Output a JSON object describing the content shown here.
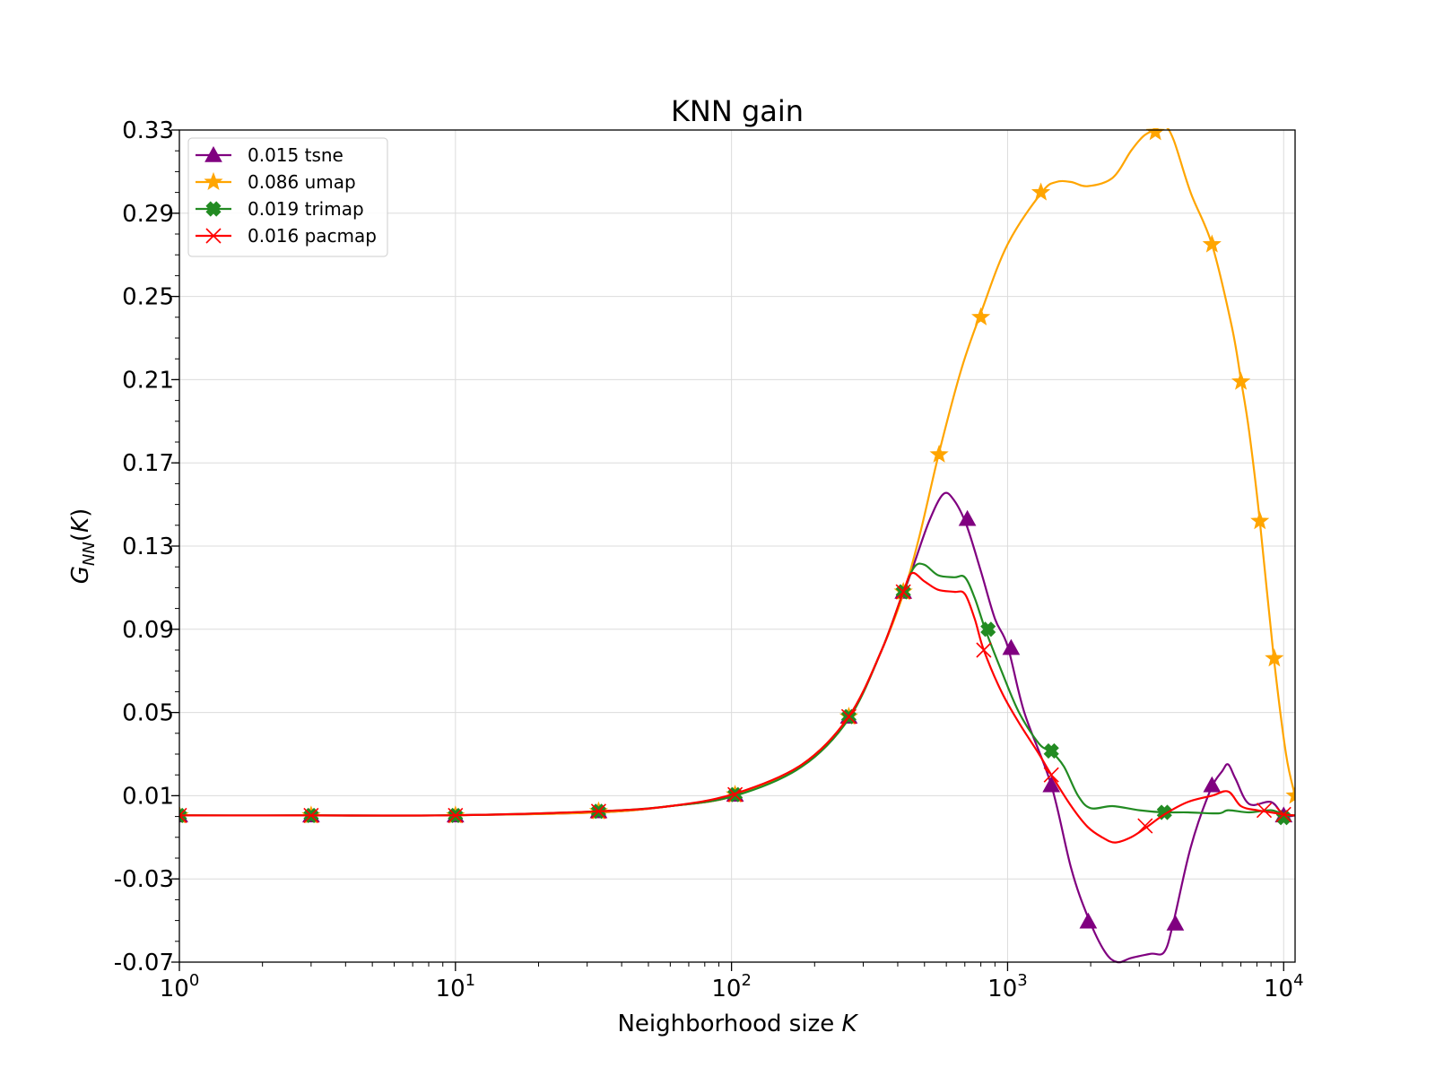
{
  "chart_data": {
    "type": "line",
    "title": "KNN gain",
    "xlabel": "Neighborhood size K",
    "ylabel": "G_NN(K)",
    "xscale": "log",
    "xlim": [
      1,
      11000
    ],
    "ylim": [
      -0.07,
      0.33
    ],
    "yticks": [
      "0.33",
      "0.29",
      "0.25",
      "0.21",
      "0.17",
      "0.13",
      "0.09",
      "0.05",
      "0.01",
      "-0.03",
      "-0.07"
    ],
    "xticks": [
      {
        "base": "10",
        "exp": "0",
        "value": 1
      },
      {
        "base": "10",
        "exp": "1",
        "value": 10
      },
      {
        "base": "10",
        "exp": "2",
        "value": 100
      },
      {
        "base": "10",
        "exp": "3",
        "value": 1000
      },
      {
        "base": "10",
        "exp": "4",
        "value": 10000
      }
    ],
    "grid": true,
    "legend_position": "upper-left",
    "series": [
      {
        "name": "0.015 tsne",
        "color": "#800080",
        "marker": "triangle",
        "curve": [
          [
            1,
            0.0005
          ],
          [
            3,
            0.0005
          ],
          [
            10,
            0.0006
          ],
          [
            33,
            0.002
          ],
          [
            60,
            0.005
          ],
          [
            103,
            0.01
          ],
          [
            180,
            0.025
          ],
          [
            266,
            0.048
          ],
          [
            350,
            0.08
          ],
          [
            419,
            0.107
          ],
          [
            460,
            0.122
          ],
          [
            520,
            0.142
          ],
          [
            585,
            0.155
          ],
          [
            640,
            0.152
          ],
          [
            710,
            0.14
          ],
          [
            800,
            0.118
          ],
          [
            900,
            0.095
          ],
          [
            1000,
            0.082
          ],
          [
            1150,
            0.05
          ],
          [
            1440,
            0.015
          ],
          [
            1700,
            -0.025
          ],
          [
            1950,
            -0.048
          ],
          [
            2250,
            -0.065
          ],
          [
            2500,
            -0.07
          ],
          [
            2800,
            -0.068
          ],
          [
            3300,
            -0.066
          ],
          [
            3700,
            -0.065
          ],
          [
            4000,
            -0.05
          ],
          [
            4600,
            -0.015
          ],
          [
            5400,
            0.012
          ],
          [
            6000,
            0.022
          ],
          [
            6300,
            0.025
          ],
          [
            6700,
            0.018
          ],
          [
            7500,
            0.006
          ],
          [
            9000,
            0.007
          ],
          [
            10000,
            0.0005
          ],
          [
            11000,
            0.0005
          ]
        ],
        "markers": [
          [
            1,
            0.0005
          ],
          [
            3,
            0.0005
          ],
          [
            10,
            0.0005
          ],
          [
            33,
            0.0025
          ],
          [
            103,
            0.0105
          ],
          [
            266,
            0.048
          ],
          [
            419,
            0.108
          ],
          [
            715,
            0.143
          ],
          [
            1030,
            0.081
          ],
          [
            1440,
            0.015
          ],
          [
            1960,
            -0.0505
          ],
          [
            4050,
            -0.0515
          ],
          [
            5500,
            0.015
          ],
          [
            10000,
            0.0005
          ]
        ]
      },
      {
        "name": "0.086 umap",
        "color": "#ffa500",
        "marker": "star",
        "curve": [
          [
            1,
            0.0005
          ],
          [
            3,
            0.0005
          ],
          [
            10,
            0.0006
          ],
          [
            33,
            0.002
          ],
          [
            60,
            0.005
          ],
          [
            103,
            0.01
          ],
          [
            180,
            0.025
          ],
          [
            266,
            0.048
          ],
          [
            350,
            0.08
          ],
          [
            419,
            0.107
          ],
          [
            480,
            0.135
          ],
          [
            565,
            0.175
          ],
          [
            680,
            0.215
          ],
          [
            800,
            0.242
          ],
          [
            1000,
            0.275
          ],
          [
            1330,
            0.3
          ],
          [
            1500,
            0.305
          ],
          [
            1700,
            0.305
          ],
          [
            1950,
            0.303
          ],
          [
            2400,
            0.307
          ],
          [
            2800,
            0.32
          ],
          [
            3100,
            0.327
          ],
          [
            3400,
            0.33
          ],
          [
            3700,
            0.332
          ],
          [
            4000,
            0.325
          ],
          [
            4600,
            0.3
          ],
          [
            5500,
            0.275
          ],
          [
            6500,
            0.235
          ],
          [
            7000,
            0.21
          ],
          [
            7500,
            0.185
          ],
          [
            8200,
            0.142
          ],
          [
            9200,
            0.077
          ],
          [
            10200,
            0.03
          ],
          [
            11000,
            0.01
          ]
        ],
        "markers": [
          [
            1,
            0.0005
          ],
          [
            3,
            0.0005
          ],
          [
            10,
            0.0005
          ],
          [
            33,
            0.0025
          ],
          [
            103,
            0.0105
          ],
          [
            266,
            0.048
          ],
          [
            419,
            0.108
          ],
          [
            565,
            0.174
          ],
          [
            800,
            0.24
          ],
          [
            1320,
            0.3
          ],
          [
            3430,
            0.329
          ],
          [
            5500,
            0.275
          ],
          [
            7000,
            0.209
          ],
          [
            8200,
            0.142
          ],
          [
            9250,
            0.076
          ],
          [
            11000,
            0.01
          ]
        ]
      },
      {
        "name": "0.019 trimap",
        "color": "#228b22",
        "marker": "x-filled",
        "curve": [
          [
            1,
            0.0005
          ],
          [
            3,
            0.0005
          ],
          [
            10,
            0.0006
          ],
          [
            33,
            0.0025
          ],
          [
            60,
            0.005
          ],
          [
            103,
            0.01
          ],
          [
            180,
            0.024
          ],
          [
            266,
            0.047
          ],
          [
            350,
            0.08
          ],
          [
            419,
            0.108
          ],
          [
            460,
            0.12
          ],
          [
            500,
            0.121
          ],
          [
            560,
            0.116
          ],
          [
            640,
            0.115
          ],
          [
            700,
            0.115
          ],
          [
            760,
            0.105
          ],
          [
            830,
            0.09
          ],
          [
            950,
            0.07
          ],
          [
            1100,
            0.05
          ],
          [
            1300,
            0.035
          ],
          [
            1440,
            0.031
          ],
          [
            1600,
            0.024
          ],
          [
            1800,
            0.01
          ],
          [
            2000,
            0.004
          ],
          [
            2400,
            0.005
          ],
          [
            3000,
            0.003
          ],
          [
            3700,
            0.002
          ],
          [
            4500,
            0.002
          ],
          [
            5800,
            0.0015
          ],
          [
            6300,
            0.003
          ],
          [
            7500,
            0.002
          ],
          [
            9000,
            0.003
          ],
          [
            10000,
            0.001
          ],
          [
            11000,
            0.0005
          ]
        ],
        "markers": [
          [
            1,
            0.0005
          ],
          [
            3,
            0.0005
          ],
          [
            10,
            0.0005
          ],
          [
            33,
            0.0025
          ],
          [
            103,
            0.0105
          ],
          [
            266,
            0.048
          ],
          [
            419,
            0.108
          ],
          [
            850,
            0.09
          ],
          [
            1440,
            0.0315
          ],
          [
            3700,
            0.002
          ],
          [
            10000,
            -0.0005
          ]
        ]
      },
      {
        "name": "0.016 pacmap",
        "color": "#ff0000",
        "marker": "x-thin",
        "curve": [
          [
            1,
            0.0005
          ],
          [
            3,
            0.0005
          ],
          [
            10,
            0.0006
          ],
          [
            33,
            0.0025
          ],
          [
            60,
            0.005
          ],
          [
            103,
            0.011
          ],
          [
            180,
            0.025
          ],
          [
            266,
            0.048
          ],
          [
            350,
            0.08
          ],
          [
            419,
            0.108
          ],
          [
            450,
            0.117
          ],
          [
            500,
            0.113
          ],
          [
            560,
            0.109
          ],
          [
            640,
            0.108
          ],
          [
            700,
            0.107
          ],
          [
            760,
            0.095
          ],
          [
            820,
            0.08
          ],
          [
            950,
            0.06
          ],
          [
            1100,
            0.045
          ],
          [
            1300,
            0.03
          ],
          [
            1440,
            0.02
          ],
          [
            1700,
            0.005
          ],
          [
            1950,
            -0.005
          ],
          [
            2200,
            -0.01
          ],
          [
            2450,
            -0.0125
          ],
          [
            2800,
            -0.01
          ],
          [
            3200,
            -0.005
          ],
          [
            3700,
            0.001
          ],
          [
            4500,
            0.007
          ],
          [
            5500,
            0.01
          ],
          [
            6300,
            0.012
          ],
          [
            7000,
            0.005
          ],
          [
            8000,
            0.003
          ],
          [
            9000,
            0.002
          ],
          [
            10000,
            0.001
          ],
          [
            11000,
            0.0005
          ]
        ],
        "markers": [
          [
            1,
            0.0005
          ],
          [
            3,
            0.0005
          ],
          [
            10,
            0.0005
          ],
          [
            33,
            0.0025
          ],
          [
            103,
            0.0105
          ],
          [
            266,
            0.048
          ],
          [
            419,
            0.108
          ],
          [
            820,
            0.08
          ],
          [
            1440,
            0.02
          ],
          [
            3150,
            -0.0045
          ],
          [
            8500,
            0.003
          ],
          [
            10000,
            0.001
          ]
        ]
      }
    ]
  }
}
